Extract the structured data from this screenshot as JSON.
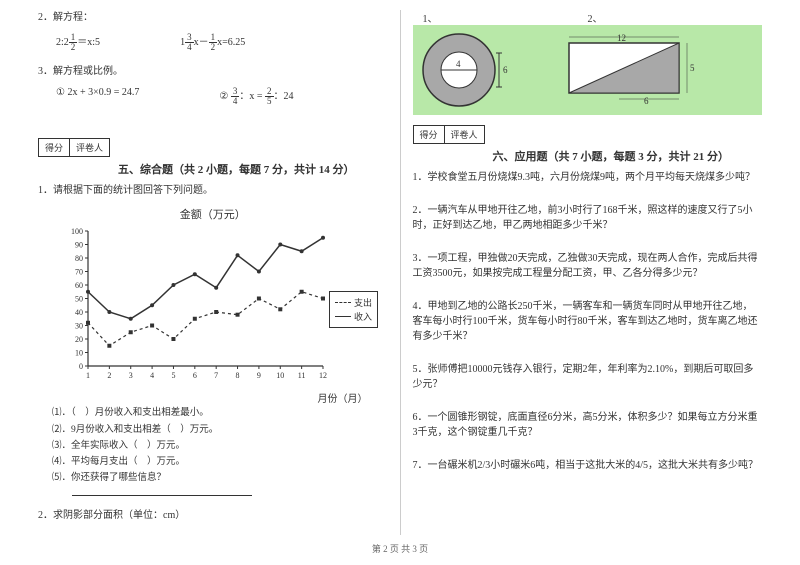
{
  "left": {
    "q2": {
      "label": "2．解方程：",
      "eq1_lhs": "2:2",
      "eq1_frac_n": "1",
      "eq1_frac_d": "2",
      "eq1_rhs": "＝x:5",
      "eq2_a": "1",
      "eq2_f1n": "3",
      "eq2_f1d": "4",
      "eq2_mid": "x－",
      "eq2_f2n": "1",
      "eq2_f2d": "2",
      "eq2_rhs": "x=6.25"
    },
    "q3": {
      "label": "3．解方程或比例。",
      "eq1": "① 2x + 3×0.9 = 24.7",
      "eq2_pre": "②",
      "eq2_f1n": "3",
      "eq2_f1d": "4",
      "eq2_mid": "：x =",
      "eq2_f2n": "2",
      "eq2_f2d": "5",
      "eq2_suf": "：24"
    },
    "score": {
      "l1": "得分",
      "l2": "评卷人"
    },
    "section5": "五、综合题（共 2 小题，每题 7 分，共计 14 分）",
    "q5_1": "1．请根据下面的统计图回答下列问题。",
    "chart": {
      "title": "金额（万元）",
      "ylabel_values": [
        100,
        90,
        80,
        70,
        60,
        50,
        40,
        30,
        20,
        10,
        0
      ],
      "xlabel": "月份（月）",
      "months": [
        1,
        2,
        3,
        4,
        5,
        6,
        7,
        8,
        9,
        10,
        11,
        12
      ],
      "legend1": "支出",
      "legend2": "收入",
      "income": [
        55,
        40,
        35,
        45,
        60,
        68,
        58,
        82,
        70,
        90,
        85,
        95
      ],
      "expense": [
        32,
        15,
        25,
        30,
        20,
        35,
        40,
        38,
        50,
        42,
        55,
        50
      ],
      "colors": {
        "line": "#333333",
        "grid": "#888888",
        "bg": "#ffffff"
      }
    },
    "subq": {
      "s1": "⑴．（　）月份收入和支出相差最小。",
      "s2": "⑵．9月份收入和支出相差（　）万元。",
      "s3": "⑶．全年实际收入（　）万元。",
      "s4": "⑷．平均每月支出（　）万元。",
      "s5": "⑸．你还获得了哪些信息？"
    },
    "q5_2": "2．求阴影部分面积（单位：cm）"
  },
  "right": {
    "geo_labels": {
      "n1": "1、",
      "n2": "2、"
    },
    "geo": {
      "circle_d": "4",
      "circle_side": "6",
      "tri_top": "12",
      "tri_h": "5",
      "tri_base": "6",
      "bg_color": "#b8e8a8",
      "shape_color": "#ffffff",
      "shade_color": "#a8a8a8"
    },
    "score": {
      "l1": "得分",
      "l2": "评卷人"
    },
    "section6": "六、应用题（共 7 小题，每题 3 分，共计 21 分）",
    "q1": "1．学校食堂五月份烧煤9.3吨，六月份烧煤9吨，两个月平均每天烧煤多少吨？",
    "q2": "2．一辆汽车从甲地开往乙地，前3小时行了168千米，照这样的速度又行了5小时，正好到达乙地，甲乙两地相距多少千米？",
    "q3": "3．一项工程，甲独做20天完成，乙独做30天完成，现在两人合作，完成后共得工资3500元，如果按完成工程量分配工资，甲、乙各分得多少元？",
    "q4": "4．甲地到乙地的公路长250千米，一辆客车和一辆货车同时从甲地开往乙地，客车每小时行100千米，货车每小时行80千米，客车到达乙地时，货车离乙地还有多少千米？",
    "q5": "5．张师傅把10000元钱存入银行，定期2年，年利率为2.10%，到期后可取回多少元？",
    "q6": "6．一个圆锥形钢锭，底面直径6分米，高5分米，体积多少？如果每立方分米重3千克，这个钢锭重几千克？",
    "q7": "7．一台碾米机2/3小时碾米6吨，相当于这批大米的4/5，这批大米共有多少吨？"
  },
  "footer": "第 2 页 共 3 页"
}
